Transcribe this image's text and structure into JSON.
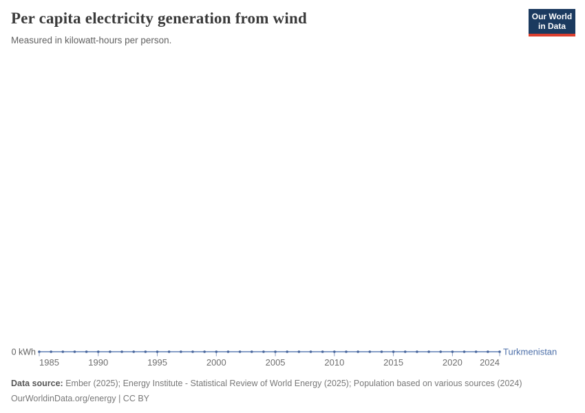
{
  "header": {
    "title": "Per capita electricity generation from wind",
    "subtitle": "Measured in kilowatt-hours per person."
  },
  "logo": {
    "line1": "Our World",
    "line2": "in Data",
    "bg_color": "#1b3a5f",
    "accent_color": "#dc3f2e"
  },
  "chart_data": {
    "type": "line",
    "title": "Per capita electricity generation from wind",
    "subtitle": "Measured in kilowatt-hours per person.",
    "x": [
      1985,
      1986,
      1987,
      1988,
      1989,
      1990,
      1991,
      1992,
      1993,
      1994,
      1995,
      1996,
      1997,
      1998,
      1999,
      2000,
      2001,
      2002,
      2003,
      2004,
      2005,
      2006,
      2007,
      2008,
      2009,
      2010,
      2011,
      2012,
      2013,
      2014,
      2015,
      2016,
      2017,
      2018,
      2019,
      2020,
      2021,
      2022,
      2023,
      2024
    ],
    "series": [
      {
        "name": "Turkmenistan",
        "color": "#4c6fa9",
        "values": [
          0,
          0,
          0,
          0,
          0,
          0,
          0,
          0,
          0,
          0,
          0,
          0,
          0,
          0,
          0,
          0,
          0,
          0,
          0,
          0,
          0,
          0,
          0,
          0,
          0,
          0,
          0,
          0,
          0,
          0,
          0,
          0,
          0,
          0,
          0,
          0,
          0,
          0,
          0,
          0
        ]
      }
    ],
    "x_ticks": [
      1985,
      1990,
      1995,
      2000,
      2005,
      2010,
      2015,
      2020,
      2024
    ],
    "y_ticks": [
      {
        "value": 0,
        "label": "0 kWh"
      }
    ],
    "xlim": [
      1985,
      2024
    ],
    "ylim": [
      0,
      0
    ],
    "grid": false,
    "legend": "end-of-line-label",
    "line_color": "#5b7db3",
    "marker_color": "#47659b",
    "tick_label_color": "#6e6e6e"
  },
  "footer": {
    "source_label": "Data source:",
    "source_text": " Ember (2025); Energy Institute - Statistical Review of World Energy (2025); Population based on various sources (2024)",
    "line2": "OurWorldinData.org/energy | CC BY"
  }
}
